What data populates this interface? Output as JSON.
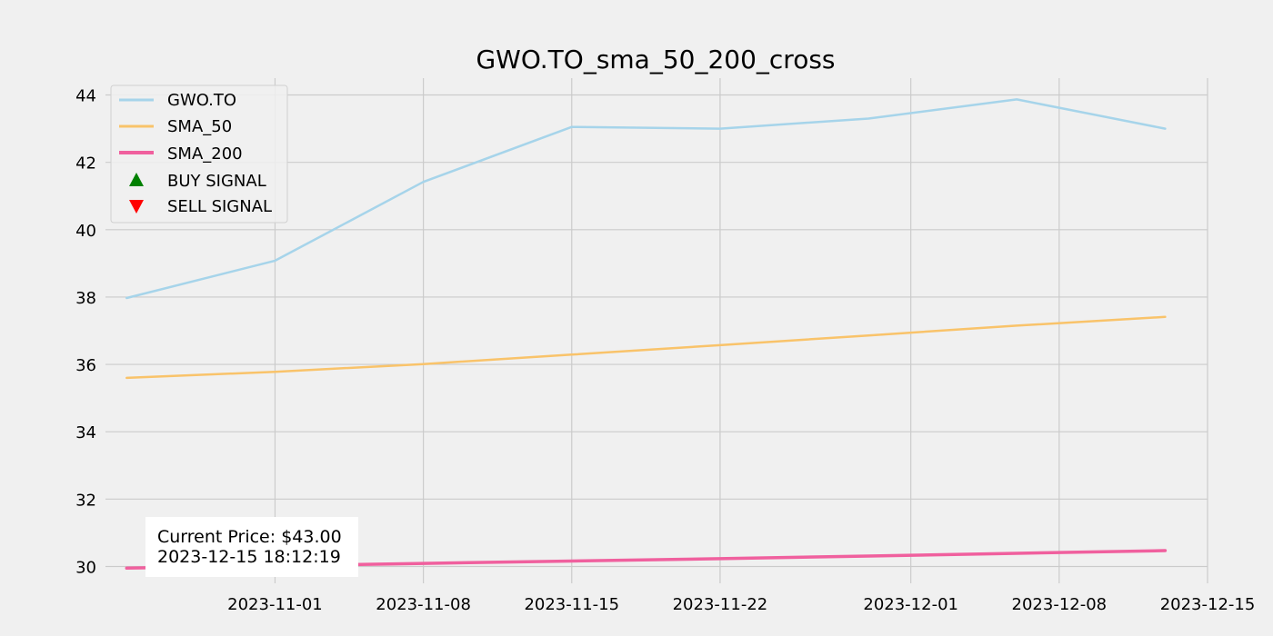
{
  "chart_data": {
    "type": "line",
    "title": "GWO.TO_sma_50_200_cross",
    "xlabel": "",
    "ylabel": "",
    "x": [
      "2023-10-25",
      "2023-11-01",
      "2023-11-08",
      "2023-11-15",
      "2023-11-22",
      "2023-11-29",
      "2023-12-06",
      "2023-12-13"
    ],
    "xlim": [
      "2023-10-24",
      "2023-12-15"
    ],
    "ylim": [
      29.5,
      44.5
    ],
    "x_ticks": [
      "2023-11-01",
      "2023-11-08",
      "2023-11-15",
      "2023-11-22",
      "2023-12-01",
      "2023-12-08",
      "2023-12-15"
    ],
    "y_ticks": [
      30,
      32,
      34,
      36,
      38,
      40,
      42,
      44
    ],
    "grid": true,
    "legend_position": "top-left",
    "series": [
      {
        "name": "GWO.TO",
        "color": "#a6d4ea",
        "values": [
          37.97,
          39.08,
          41.42,
          43.05,
          43.0,
          43.3,
          43.87,
          43.0
        ]
      },
      {
        "name": "SMA_50",
        "color": "#f9c36a",
        "values": [
          35.6,
          35.78,
          36.01,
          36.29,
          36.57,
          36.86,
          37.15,
          37.41
        ]
      },
      {
        "name": "SMA_200",
        "color": "#f0609e",
        "values": [
          29.95,
          30.02,
          30.09,
          30.16,
          30.23,
          30.31,
          30.39,
          30.47
        ]
      }
    ],
    "markers": [
      {
        "name": "BUY SIGNAL",
        "symbol": "triangle-up",
        "color": "#008000"
      },
      {
        "name": "SELL SIGNAL",
        "symbol": "triangle-down",
        "color": "#ff0000"
      }
    ],
    "annotation": {
      "line1": "Current Price: $43.00",
      "line2": "2023-12-15 18:12:19"
    }
  }
}
